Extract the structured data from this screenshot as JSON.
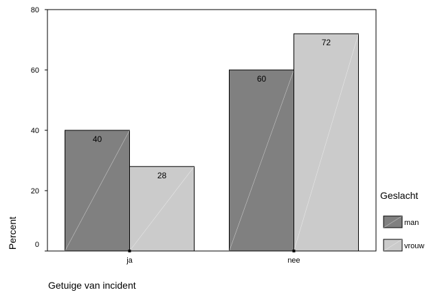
{
  "chart_data": {
    "type": "bar",
    "categories": [
      "ja",
      "nee"
    ],
    "series": [
      {
        "name": "man",
        "values": [
          40,
          60
        ],
        "color": "#808080"
      },
      {
        "name": "vrouw",
        "values": [
          28,
          72
        ],
        "color": "#cbcbcb"
      }
    ],
    "data_labels": [
      [
        "40",
        "60"
      ],
      [
        "28",
        "72"
      ]
    ],
    "title": "",
    "xlabel": "Getuige van incident",
    "ylabel": "Percent",
    "ylim": [
      0,
      80
    ],
    "yticks": [
      0,
      20,
      40,
      60,
      80
    ],
    "grid": false,
    "legend": {
      "title": "Geslacht",
      "placement": "right"
    }
  }
}
